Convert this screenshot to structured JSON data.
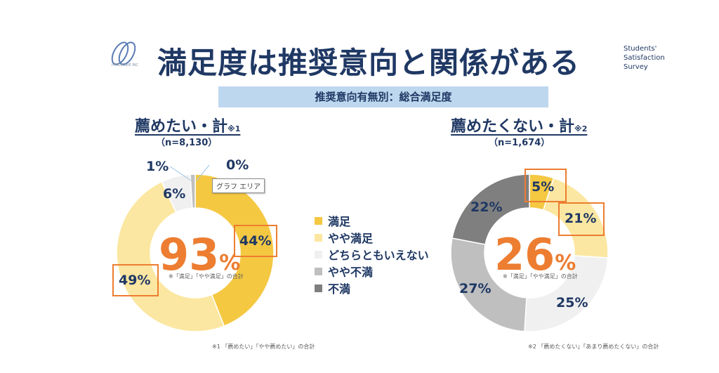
{
  "title": "満足度は推奨意向と関係がある",
  "logo_text": "HINOWARE INC",
  "survey_label": [
    "Students'",
    "Satisfaction",
    "Survey"
  ],
  "subtitle": "推奨意向有無別：総合満足度",
  "tooltip": "グラフ エリア",
  "colors": {
    "manzoku": "#f5c842",
    "yaya_manzoku": "#fbe7a1",
    "dochira": "#f0f0f0",
    "yaya_fuman": "#bfbfbf",
    "fuman": "#7f7f7f",
    "highlight": "#ed7d31",
    "text": "#1f3864"
  },
  "legend": [
    "満足",
    "やや満足",
    "どちらともいえない",
    "やや不満",
    "不満"
  ],
  "chart_data": [
    {
      "type": "pie",
      "title": "薦めたい・計",
      "title_note": "※1",
      "n_label": "（n=8,130）",
      "categories": [
        "満足",
        "やや満足",
        "どちらともいえない",
        "やや不満",
        "不満"
      ],
      "values": [
        44,
        49,
        6,
        1,
        0
      ],
      "value_labels": [
        "44%",
        "49%",
        "6%",
        "1%",
        "0%"
      ],
      "center_value": "93",
      "center_unit": "%",
      "center_note": "※「満足」「やや満足」の合計",
      "footnote": "※1 「薦めたい」「やや薦めたい」の合計"
    },
    {
      "type": "pie",
      "title": "薦めたくない・計",
      "title_note": "※2",
      "n_label": "（n=1,674）",
      "categories": [
        "満足",
        "やや満足",
        "どちらともいえない",
        "やや不満",
        "不満"
      ],
      "values": [
        5,
        21,
        25,
        27,
        22
      ],
      "value_labels": [
        "5%",
        "21%",
        "25%",
        "27%",
        "22%"
      ],
      "center_value": "26",
      "center_unit": "%",
      "center_note": "※「満足」「やや満足」の合計",
      "footnote": "※2 「薦めたくない」「あまり薦めたくない」の合計"
    }
  ]
}
